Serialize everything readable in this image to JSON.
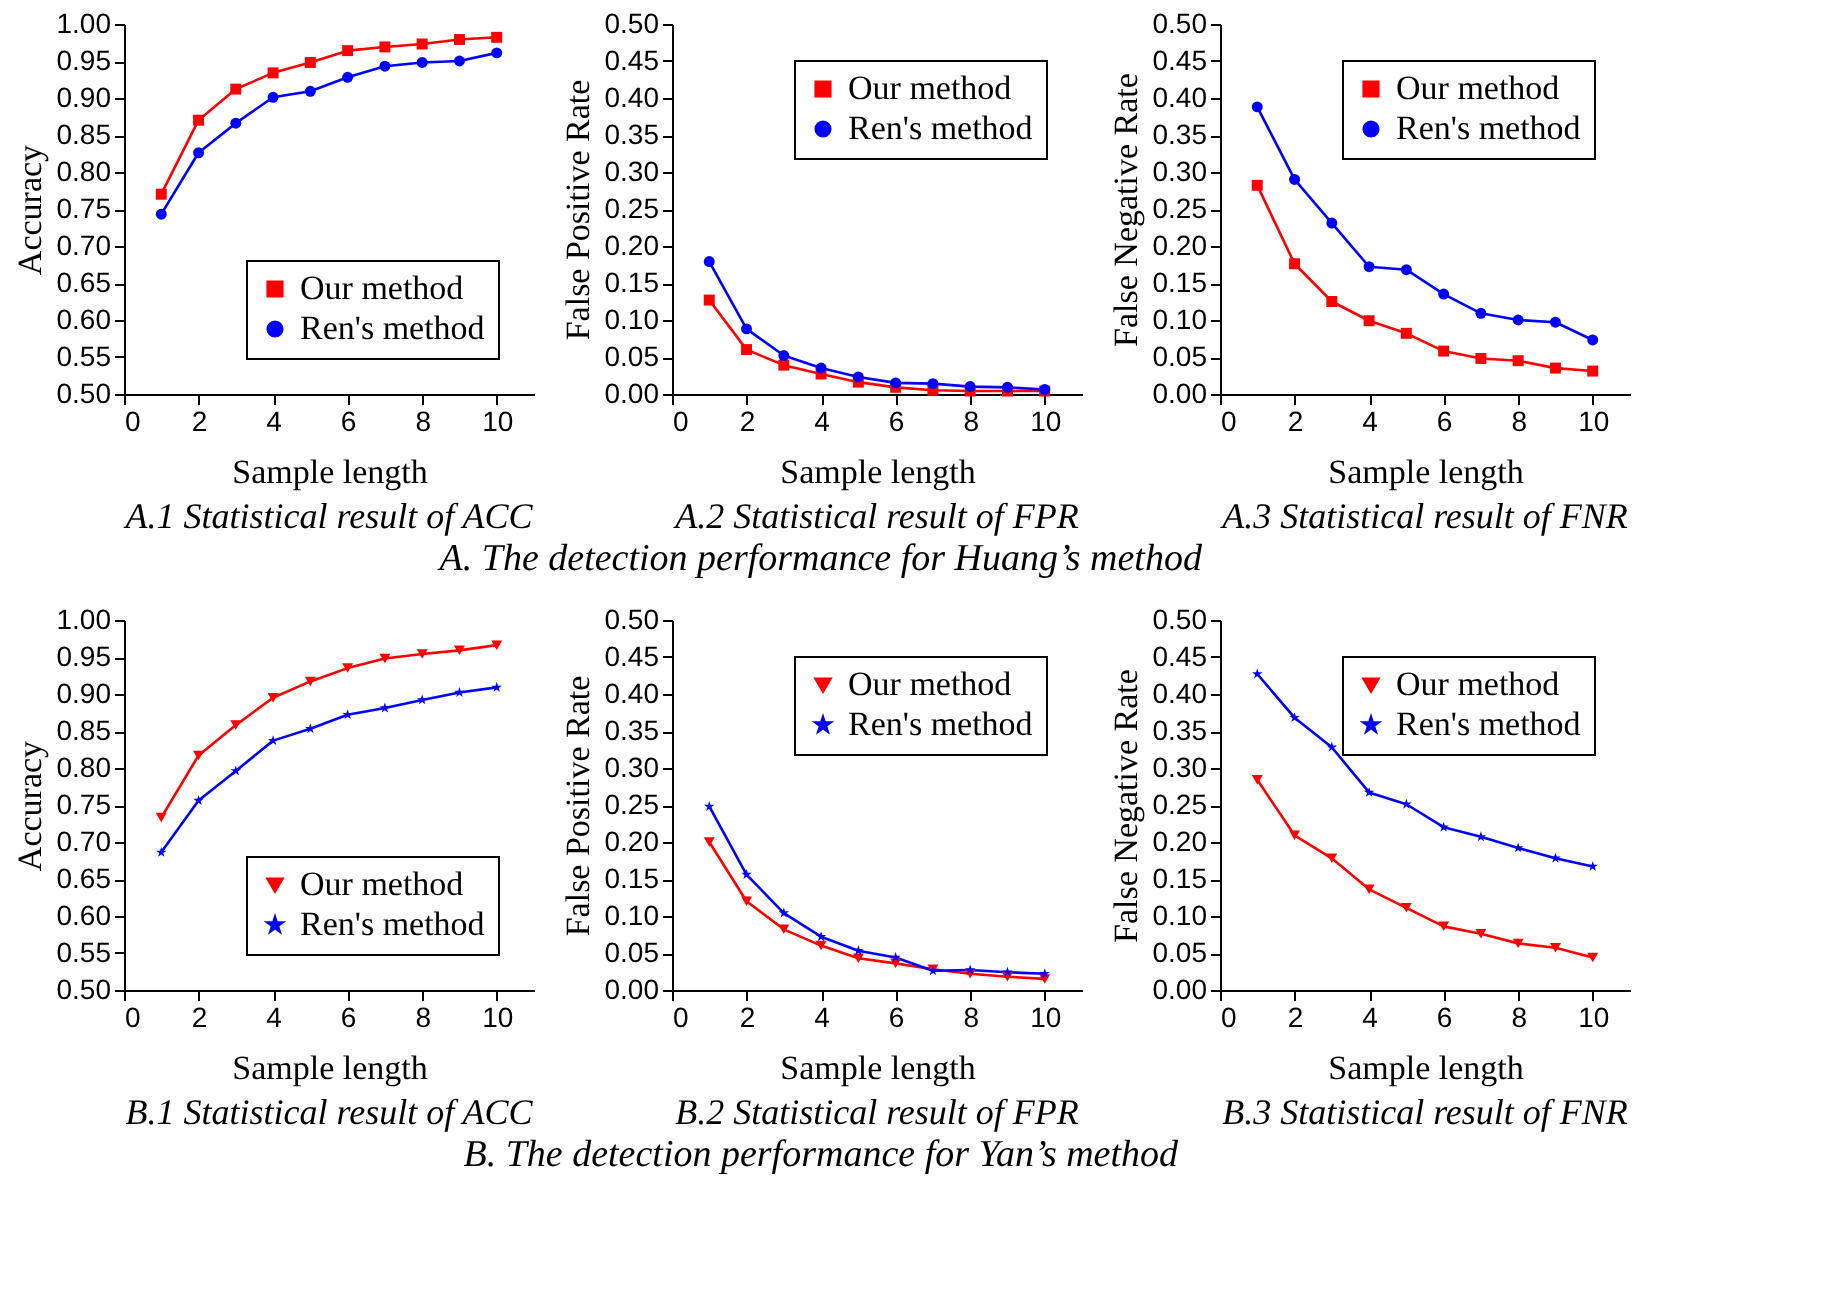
{
  "chart_data": [
    {
      "type": "line",
      "title": "A.1 Statistical result of ACC",
      "xlabel": "Sample length",
      "ylabel": "Accuracy",
      "x": [
        1,
        2,
        3,
        4,
        5,
        6,
        7,
        8,
        9,
        10
      ],
      "xlim": [
        0,
        11
      ],
      "xticks": [
        0,
        2,
        4,
        6,
        8,
        10
      ],
      "ylim": [
        0.5,
        1.0
      ],
      "yticks": [
        {
          "value": 0.5,
          "label": "0.50"
        },
        0.55,
        {
          "value": 0.6,
          "label": "0.60"
        },
        0.65,
        {
          "value": 0.7,
          "label": "0.70"
        },
        0.75,
        {
          "value": 0.8,
          "label": "0.80"
        },
        0.85,
        {
          "value": 0.9,
          "label": "0.90"
        },
        0.95,
        {
          "value": 1.0,
          "label": "1.00"
        }
      ],
      "legend": "bottom right",
      "series": [
        {
          "name": "Our method",
          "color": "#ff0000",
          "marker": "square",
          "values": [
            0.77,
            0.87,
            0.912,
            0.934,
            0.948,
            0.964,
            0.969,
            0.973,
            0.979,
            0.982
          ]
        },
        {
          "name": "Ren's method",
          "color": "#0000ff",
          "marker": "circle",
          "values": [
            0.743,
            0.826,
            0.866,
            0.901,
            0.909,
            0.928,
            0.943,
            0.948,
            0.95,
            0.961
          ]
        }
      ]
    },
    {
      "type": "line",
      "title": "A.2 Statistical result of FPR",
      "xlabel": "Sample length",
      "ylabel": "False Positive Rate",
      "x": [
        1,
        2,
        3,
        4,
        5,
        6,
        7,
        8,
        9,
        10
      ],
      "xlim": [
        0,
        11
      ],
      "xticks": [
        0,
        2,
        4,
        6,
        8,
        10
      ],
      "ylim": [
        0.0,
        0.5
      ],
      "yticks": [
        {
          "value": 0,
          "label": "0.00"
        },
        0.05,
        {
          "value": 0.1,
          "label": "0.10"
        },
        0.15,
        {
          "value": 0.2,
          "label": "0.20"
        },
        0.25,
        {
          "value": 0.3,
          "label": "0.30"
        },
        0.35,
        {
          "value": 0.4,
          "label": "0.40"
        },
        0.45,
        {
          "value": 0.5,
          "label": "0.50"
        }
      ],
      "legend": "top right",
      "annotations": [
        "A. The detection performance for Huang’s method"
      ],
      "series": [
        {
          "name": "Our method",
          "color": "#ff0000",
          "marker": "square",
          "values": [
            0.127,
            0.06,
            0.039,
            0.027,
            0.016,
            0.009,
            0.005,
            0.004,
            0.004,
            0.004
          ]
        },
        {
          "name": "Ren's method",
          "color": "#0000ff",
          "marker": "circle",
          "values": [
            0.179,
            0.088,
            0.052,
            0.035,
            0.023,
            0.015,
            0.014,
            0.01,
            0.009,
            0.006
          ]
        }
      ]
    },
    {
      "type": "line",
      "title": "A.3 Statistical result of FNR",
      "xlabel": "Sample length",
      "ylabel": "False Negative Rate",
      "x": [
        1,
        2,
        3,
        4,
        5,
        6,
        7,
        8,
        9,
        10
      ],
      "xlim": [
        0,
        11
      ],
      "xticks": [
        0,
        2,
        4,
        6,
        8,
        10
      ],
      "ylim": [
        0.0,
        0.5
      ],
      "yticks": [
        {
          "value": 0,
          "label": "0.00"
        },
        0.05,
        {
          "value": 0.1,
          "label": "0.10"
        },
        0.15,
        {
          "value": 0.2,
          "label": "0.20"
        },
        0.25,
        {
          "value": 0.3,
          "label": "0.30"
        },
        0.35,
        {
          "value": 0.4,
          "label": "0.40"
        },
        0.45,
        {
          "value": 0.5,
          "label": "0.50"
        }
      ],
      "legend": "top right",
      "series": [
        {
          "name": "Our method",
          "color": "#ff0000",
          "marker": "square",
          "values": [
            0.282,
            0.176,
            0.125,
            0.099,
            0.082,
            0.058,
            0.048,
            0.045,
            0.035,
            0.031
          ]
        },
        {
          "name": "Ren's method",
          "color": "#0000ff",
          "marker": "circle",
          "values": [
            0.388,
            0.29,
            0.231,
            0.172,
            0.168,
            0.135,
            0.109,
            0.1,
            0.097,
            0.073
          ]
        }
      ]
    },
    {
      "type": "line",
      "title": "B.1 Statistical result of ACC",
      "xlabel": "Sample length",
      "ylabel": "Accuracy",
      "x": [
        1,
        2,
        3,
        4,
        5,
        6,
        7,
        8,
        9,
        10
      ],
      "xlim": [
        0,
        11
      ],
      "xticks": [
        0,
        2,
        4,
        6,
        8,
        10
      ],
      "ylim": [
        0.5,
        1.0
      ],
      "yticks": [
        {
          "value": 0.5,
          "label": "0.50"
        },
        0.55,
        {
          "value": 0.6,
          "label": "0.60"
        },
        0.65,
        {
          "value": 0.7,
          "label": "0.70"
        },
        0.75,
        {
          "value": 0.8,
          "label": "0.80"
        },
        0.85,
        {
          "value": 0.9,
          "label": "0.90"
        },
        0.95,
        {
          "value": 1.0,
          "label": "1.00"
        }
      ],
      "legend": "bottom right",
      "series": [
        {
          "name": "Our method",
          "color": "#ff0000",
          "marker": "triangle",
          "values": [
            0.733,
            0.817,
            0.858,
            0.895,
            0.917,
            0.935,
            0.948,
            0.954,
            0.959,
            0.966
          ]
        },
        {
          "name": "Ren's method",
          "color": "#0000ff",
          "marker": "star",
          "values": [
            0.686,
            0.756,
            0.796,
            0.837,
            0.853,
            0.872,
            0.881,
            0.892,
            0.902,
            0.909
          ]
        }
      ]
    },
    {
      "type": "line",
      "title": "B.2 Statistical result of FPR",
      "xlabel": "Sample length",
      "ylabel": "False Positive Rate",
      "x": [
        1,
        2,
        3,
        4,
        5,
        6,
        7,
        8,
        9,
        10
      ],
      "xlim": [
        0,
        11
      ],
      "xticks": [
        0,
        2,
        4,
        6,
        8,
        10
      ],
      "ylim": [
        0.0,
        0.5
      ],
      "yticks": [
        {
          "value": 0,
          "label": "0.00"
        },
        0.05,
        {
          "value": 0.1,
          "label": "0.10"
        },
        0.15,
        {
          "value": 0.2,
          "label": "0.20"
        },
        0.25,
        {
          "value": 0.3,
          "label": "0.30"
        },
        0.35,
        {
          "value": 0.4,
          "label": "0.40"
        },
        0.45,
        {
          "value": 0.5,
          "label": "0.50"
        }
      ],
      "legend": "top right",
      "annotations": [
        "B. The detection performance for Yan’s method"
      ],
      "series": [
        {
          "name": "Our method",
          "color": "#ff0000",
          "marker": "triangle",
          "values": [
            0.2,
            0.12,
            0.082,
            0.06,
            0.043,
            0.036,
            0.028,
            0.022,
            0.018,
            0.015
          ]
        },
        {
          "name": "Ren's method",
          "color": "#0000ff",
          "marker": "star",
          "values": [
            0.248,
            0.156,
            0.104,
            0.072,
            0.053,
            0.044,
            0.026,
            0.027,
            0.024,
            0.022
          ]
        }
      ]
    },
    {
      "type": "line",
      "title": "B.3 Statistical result of FNR",
      "xlabel": "Sample length",
      "ylabel": "False Negative Rate",
      "x": [
        1,
        2,
        3,
        4,
        5,
        6,
        7,
        8,
        9,
        10
      ],
      "xlim": [
        0,
        11
      ],
      "xticks": [
        0,
        2,
        4,
        6,
        8,
        10
      ],
      "ylim": [
        0.0,
        0.5
      ],
      "yticks": [
        {
          "value": 0,
          "label": "0.00"
        },
        0.05,
        {
          "value": 0.1,
          "label": "0.10"
        },
        0.15,
        {
          "value": 0.2,
          "label": "0.20"
        },
        0.25,
        {
          "value": 0.3,
          "label": "0.30"
        },
        0.35,
        {
          "value": 0.4,
          "label": "0.40"
        },
        0.45,
        {
          "value": 0.5,
          "label": "0.50"
        }
      ],
      "legend": "top right",
      "series": [
        {
          "name": "Our method",
          "color": "#ff0000",
          "marker": "triangle",
          "values": [
            0.284,
            0.209,
            0.178,
            0.136,
            0.111,
            0.086,
            0.076,
            0.063,
            0.057,
            0.044
          ]
        },
        {
          "name": "Ren's method",
          "color": "#0000ff",
          "marker": "star",
          "values": [
            0.427,
            0.368,
            0.328,
            0.267,
            0.251,
            0.22,
            0.207,
            0.192,
            0.178,
            0.167
          ]
        }
      ]
    }
  ]
}
